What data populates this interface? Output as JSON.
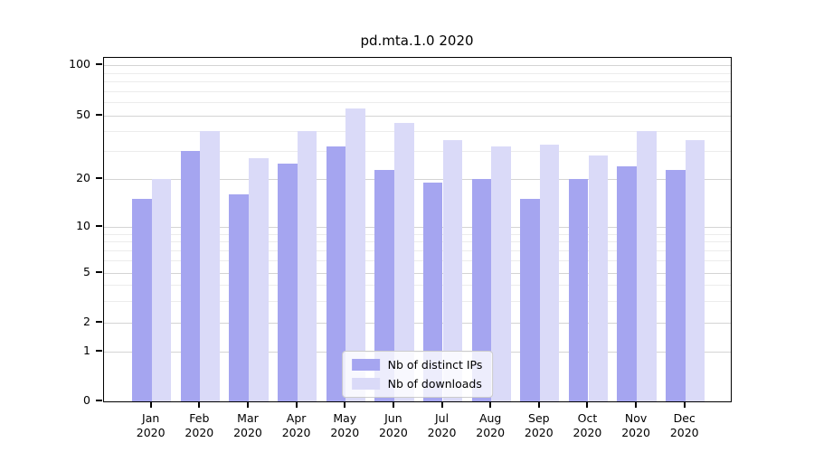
{
  "chart_data": {
    "type": "bar",
    "title": "pd.mta.1.0 2020",
    "categories": [
      "Jan",
      "Feb",
      "Mar",
      "Apr",
      "May",
      "Jun",
      "Jul",
      "Aug",
      "Sep",
      "Oct",
      "Nov",
      "Dec"
    ],
    "x_tick_second_line": "2020",
    "series": [
      {
        "name": "Nb of distinct IPs",
        "color": "#a5a5f0",
        "values": [
          15,
          30,
          16,
          25,
          32,
          23,
          19,
          20,
          15,
          20,
          24,
          23
        ]
      },
      {
        "name": "Nb of downloads",
        "color": "#dadaf8",
        "values": [
          20,
          40,
          27,
          40,
          55,
          45,
          35,
          32,
          33,
          28,
          40,
          35
        ]
      }
    ],
    "y_axis": {
      "scale": "symlog",
      "major_ticks": [
        0,
        1,
        2,
        5,
        10,
        20,
        50,
        100
      ],
      "minor_ticks": [
        3,
        4,
        6,
        7,
        8,
        9,
        30,
        40,
        60,
        70,
        80,
        90
      ],
      "range": [
        0,
        110
      ]
    },
    "grid": true,
    "legend_position": "lower center",
    "colors": {
      "major_grid": "#d4d4d4",
      "minor_grid": "#ececec",
      "axis": "#000000",
      "legend_border": "#cccccc"
    }
  }
}
